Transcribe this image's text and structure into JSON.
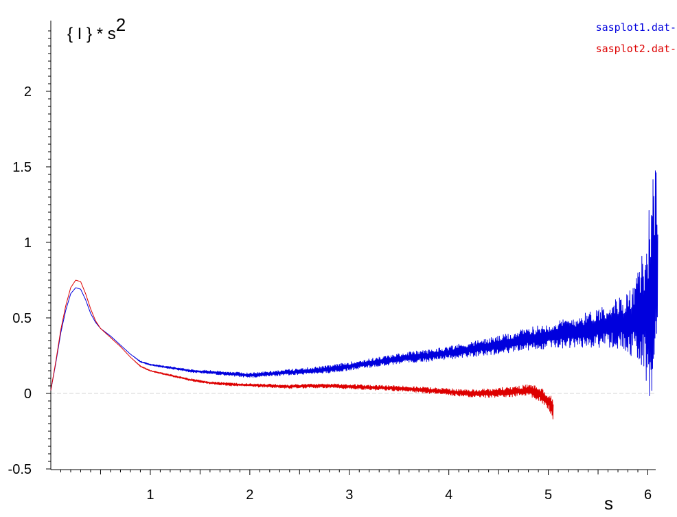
{
  "chart_data": {
    "type": "line",
    "title": "",
    "ylabel": {
      "base": "{ I } * s",
      "exponent": "2"
    },
    "xlabel": "s",
    "xlim": [
      0.0,
      6.1
    ],
    "ylim": [
      -0.5,
      2.45
    ],
    "xticks": [
      {
        "value": 1,
        "label": "1"
      },
      {
        "value": 2,
        "label": "2"
      },
      {
        "value": 3,
        "label": "3"
      },
      {
        "value": 4,
        "label": "4"
      },
      {
        "value": 5,
        "label": "5"
      },
      {
        "value": 6,
        "label": "6"
      }
    ],
    "yticks": [
      {
        "value": -0.5,
        "label": "-0.5"
      },
      {
        "value": 0,
        "label": "0"
      },
      {
        "value": 0.5,
        "label": "0.5"
      },
      {
        "value": 1,
        "label": "1"
      },
      {
        "value": 1.5,
        "label": "1.5"
      },
      {
        "value": 2,
        "label": "2"
      }
    ],
    "zero_line": true,
    "grid": false,
    "legend_position": "top-right",
    "series": [
      {
        "name": "sasplot1.dat-",
        "color": "#0000dd",
        "x": [
          0.0,
          0.05,
          0.1,
          0.15,
          0.2,
          0.25,
          0.3,
          0.35,
          0.4,
          0.45,
          0.5,
          0.6,
          0.7,
          0.8,
          0.9,
          1.0,
          1.2,
          1.4,
          1.6,
          1.8,
          2.0,
          2.2,
          2.4,
          2.6,
          2.8,
          3.0,
          3.2,
          3.4,
          3.6,
          3.8,
          4.0,
          4.2,
          4.4,
          4.6,
          4.8,
          5.0,
          5.2,
          5.4,
          5.6,
          5.8,
          5.9,
          6.0,
          6.05,
          6.1
        ],
        "y": [
          0.02,
          0.2,
          0.4,
          0.55,
          0.66,
          0.7,
          0.69,
          0.62,
          0.53,
          0.47,
          0.43,
          0.38,
          0.32,
          0.26,
          0.21,
          0.19,
          0.17,
          0.15,
          0.14,
          0.13,
          0.12,
          0.13,
          0.14,
          0.15,
          0.16,
          0.18,
          0.2,
          0.22,
          0.24,
          0.25,
          0.27,
          0.29,
          0.31,
          0.33,
          0.36,
          0.38,
          0.4,
          0.42,
          0.45,
          0.47,
          0.5,
          0.55,
          0.75,
          0.8
        ],
        "noise": [
          0.0,
          0.0,
          0.0,
          0.0,
          0.0,
          0.0,
          0.0,
          0.0,
          0.0,
          0.0,
          0.0,
          0.0,
          0.0,
          0.0,
          0.005,
          0.005,
          0.008,
          0.01,
          0.012,
          0.014,
          0.016,
          0.018,
          0.02,
          0.022,
          0.025,
          0.028,
          0.03,
          0.033,
          0.036,
          0.04,
          0.045,
          0.05,
          0.058,
          0.066,
          0.075,
          0.085,
          0.1,
          0.12,
          0.15,
          0.2,
          0.3,
          0.55,
          0.9,
          0.6
        ]
      },
      {
        "name": "sasplot2.dat-",
        "color": "#dd0000",
        "x": [
          0.0,
          0.05,
          0.1,
          0.15,
          0.2,
          0.25,
          0.3,
          0.35,
          0.4,
          0.45,
          0.5,
          0.6,
          0.7,
          0.8,
          0.9,
          1.0,
          1.2,
          1.4,
          1.6,
          1.8,
          2.0,
          2.2,
          2.4,
          2.6,
          2.8,
          3.0,
          3.2,
          3.4,
          3.6,
          3.8,
          4.0,
          4.2,
          4.4,
          4.6,
          4.8,
          4.9,
          5.0,
          5.05
        ],
        "y": [
          0.02,
          0.21,
          0.42,
          0.58,
          0.7,
          0.75,
          0.74,
          0.66,
          0.56,
          0.48,
          0.43,
          0.37,
          0.31,
          0.24,
          0.18,
          0.15,
          0.12,
          0.09,
          0.07,
          0.06,
          0.055,
          0.05,
          0.045,
          0.05,
          0.05,
          0.045,
          0.04,
          0.035,
          0.03,
          0.02,
          0.01,
          0.0,
          0.0,
          0.01,
          0.02,
          0.0,
          -0.05,
          -0.12
        ],
        "noise": [
          0.0,
          0.0,
          0.0,
          0.0,
          0.0,
          0.0,
          0.0,
          0.0,
          0.0,
          0.0,
          0.0,
          0.0,
          0.0,
          0.0,
          0.004,
          0.004,
          0.006,
          0.008,
          0.008,
          0.01,
          0.011,
          0.012,
          0.013,
          0.014,
          0.015,
          0.016,
          0.017,
          0.018,
          0.019,
          0.021,
          0.023,
          0.025,
          0.03,
          0.035,
          0.04,
          0.05,
          0.06,
          0.08
        ]
      }
    ]
  }
}
